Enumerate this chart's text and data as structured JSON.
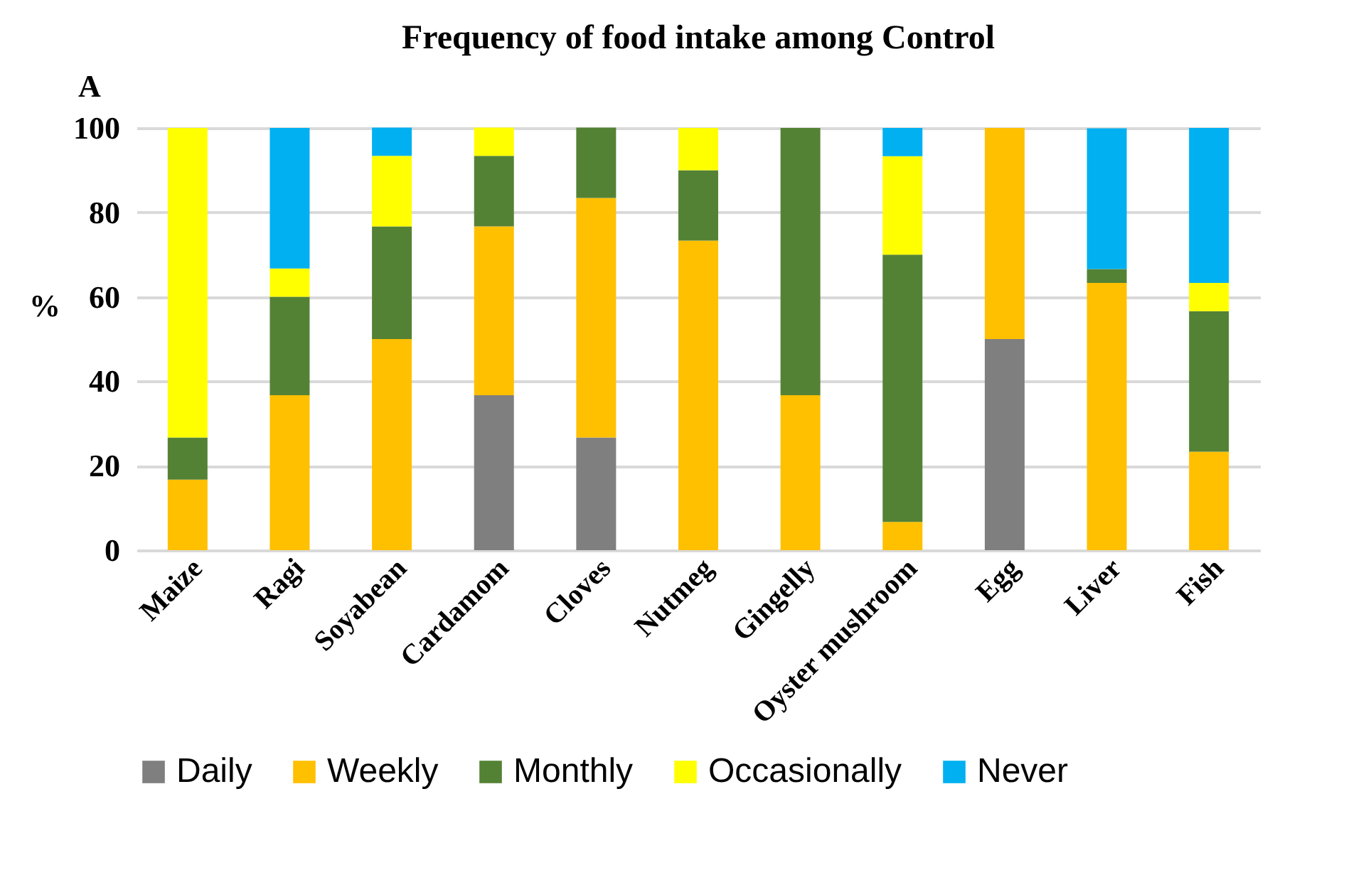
{
  "chart_data": {
    "type": "bar",
    "title": "Frequency of food intake among Control",
    "ylabel": "%",
    "annotations": [
      "A"
    ],
    "categories": [
      "Maize",
      "Ragi",
      "Soyabean",
      "Cardamom",
      "Cloves",
      "Nutmeg",
      "Gingelly",
      "Oyster mushroom",
      "Egg",
      "Liver",
      "Fish"
    ],
    "stacked": true,
    "ylim": [
      0,
      100
    ],
    "yticks": [
      0,
      20,
      40,
      60,
      80,
      100
    ],
    "grid": "y",
    "legend": "bottom",
    "series": [
      {
        "name": "Daily",
        "color": "#7f7f7f",
        "values": [
          null,
          null,
          null,
          36.7,
          26.7,
          null,
          null,
          null,
          50,
          null,
          null
        ]
      },
      {
        "name": "Weekly",
        "color": "#ffc000",
        "values": [
          16.7,
          36.7,
          50,
          40,
          56.7,
          73.3,
          36.7,
          6.7,
          50,
          63.3,
          23.3
        ]
      },
      {
        "name": "Monthly",
        "color": "#548235",
        "values": [
          10,
          23.3,
          26.7,
          16.7,
          16.7,
          16.7,
          63.3,
          63.3,
          null,
          3.3,
          33.3
        ]
      },
      {
        "name": "Occasionally",
        "color": "#ffff00",
        "values": [
          73.3,
          6.7,
          16.7,
          6.7,
          null,
          10,
          null,
          23.3,
          null,
          null,
          6.7
        ]
      },
      {
        "name": "Never",
        "color": "#00b0f0",
        "values": [
          null,
          33.3,
          6.7,
          null,
          null,
          null,
          null,
          6.7,
          null,
          33.3,
          36.7
        ]
      }
    ]
  }
}
